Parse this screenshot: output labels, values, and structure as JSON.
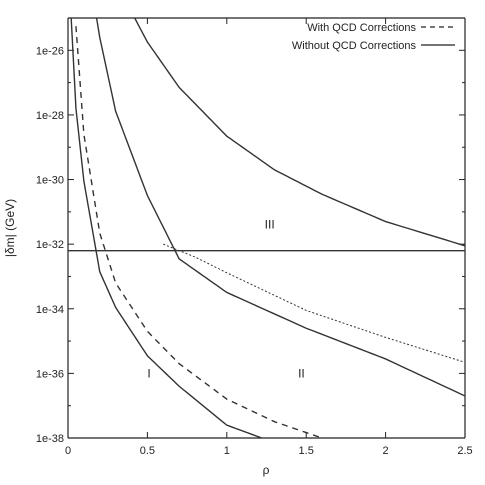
{
  "chart_data": {
    "type": "line",
    "xlabel": "ρ",
    "ylabel": "|δm| (GeV)",
    "xlim": [
      0,
      2.5
    ],
    "ylim": [
      "1e-38",
      "1e-25"
    ],
    "y_scale": "log",
    "grid": false,
    "legend_position": "top-right",
    "x_ticks": [
      "0",
      "0.5",
      "1",
      "1.5",
      "2",
      "2.5"
    ],
    "y_ticks": [
      "1e-38",
      "1e-36",
      "1e-34",
      "1e-32",
      "1e-30",
      "1e-28",
      "1e-26"
    ],
    "legend": [
      {
        "label": "With QCD Corrections",
        "style": "dashed"
      },
      {
        "label": "Without QCD Corrections",
        "style": "solid"
      }
    ],
    "region_labels": [
      {
        "text": "I",
        "x": 0.51,
        "y": "1e-36"
      },
      {
        "text": "II",
        "x": 1.47,
        "y": "1e-36"
      },
      {
        "text": "III",
        "x": 1.27,
        "y": "4e-32"
      }
    ],
    "series": [
      {
        "style": "solid",
        "x": [
          0.02,
          0.05,
          0.1,
          0.2,
          0.3,
          0.5,
          0.7,
          1.0,
          1.22
        ],
        "y": [
          "1.0e-25",
          "1.6e-28",
          "8.9e-31",
          "1.4e-33",
          "1.1e-34",
          "3.5e-36",
          "4.0e-37",
          "2.5e-38",
          "1.0e-38"
        ]
      },
      {
        "style": "dashed",
        "x": [
          0.05,
          0.1,
          0.2,
          0.3,
          0.5,
          0.7,
          1.0,
          1.3,
          1.6
        ],
        "y": [
          "5.6e-26",
          "2.5e-29",
          "2.2e-32",
          "6.3e-34",
          "2.0e-35",
          "2.0e-36",
          "1.6e-37",
          "3.2e-38",
          "1.0e-38"
        ]
      },
      {
        "style": "solid",
        "x": [
          0.18,
          0.2,
          0.3,
          0.5,
          0.7,
          1.0,
          1.5,
          2.0,
          2.5
        ],
        "y": [
          "1.0e-25",
          "2.5e-26",
          "1.3e-28",
          "3.2e-31",
          "3.5e-33",
          "3.2e-34",
          "2.5e-35",
          "2.8e-36",
          "2.0e-37"
        ]
      },
      {
        "style": "dotted",
        "x": [
          0.6,
          0.8,
          1.0,
          1.5,
          2.0,
          2.5
        ],
        "y": [
          "1.0e-32",
          "4.0e-33",
          "1.3e-33",
          "8.9e-35",
          "1.3e-35",
          "2.2e-36"
        ]
      },
      {
        "style": "solid",
        "x": [
          0.42,
          0.5,
          0.7,
          1.0,
          1.3,
          1.6,
          2.0,
          2.5
        ],
        "y": [
          "1.0e-25",
          "1.8e-26",
          "7.1e-28",
          "2.2e-29",
          "2.0e-30",
          "3.5e-31",
          "5.0e-32",
          "8.9e-33"
        ]
      },
      {
        "style": "solid",
        "x": [
          0,
          2.5
        ],
        "y": [
          "6.3e-33",
          "6.3e-33"
        ]
      }
    ]
  }
}
